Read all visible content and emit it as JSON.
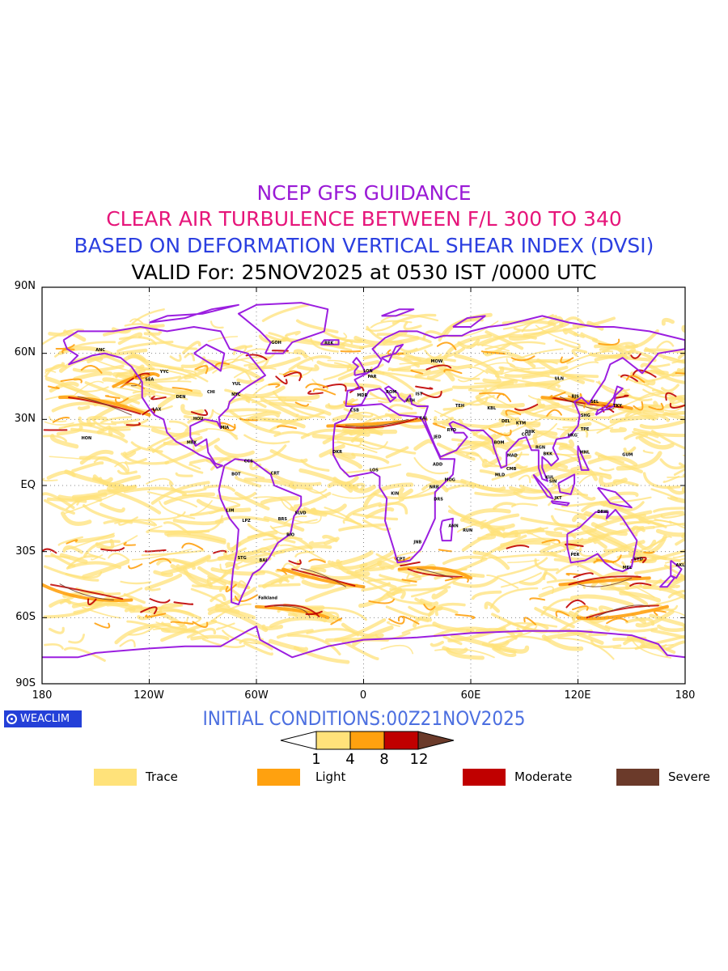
{
  "titles": {
    "line1": "NCEP GFS GUIDANCE",
    "line2": "CLEAR AIR TURBULENCE BETWEEN F/L 300 TO 340",
    "line3": "BASED ON DEFORMATION VERTICAL SHEAR INDEX (DVSI)",
    "line4": "VALID For: 25NOV2025 at 0530 IST /0000 UTC"
  },
  "colors": {
    "line1": "#9a1ad6",
    "line2": "#e6157a",
    "line3": "#2b3fe0",
    "line4": "#000000",
    "coast": "#9b1ee0",
    "trace": "#ffe27a",
    "light": "#ffa10f",
    "moderate": "#c00000",
    "severe": "#6b3a2a",
    "init": "#4c6fe0",
    "logo_bg": "#2440d8"
  },
  "axes": {
    "lat_labels": [
      "90N",
      "60N",
      "30N",
      "EQ",
      "30S",
      "60S",
      "90S"
    ],
    "lon_labels": [
      "180",
      "120W",
      "60W",
      "0",
      "60E",
      "120E",
      "180"
    ]
  },
  "logo": {
    "text": "WEACLIM"
  },
  "initial_conditions": "INITIAL CONDITIONS:00Z21NOV2025",
  "colorbar": {
    "ticks": [
      "1",
      "4",
      "8",
      "12"
    ],
    "legend": [
      {
        "label": "Trace"
      },
      {
        "label": "Light"
      },
      {
        "label": "Moderate"
      },
      {
        "label": "Severe"
      }
    ]
  },
  "station_labels": [
    {
      "code": "ANC",
      "lon": -150,
      "lat": 61
    },
    {
      "code": "HON",
      "lon": -158,
      "lat": 21
    },
    {
      "code": "MEX",
      "lon": -99,
      "lat": 19
    },
    {
      "code": "BOT",
      "lon": -74,
      "lat": 4.6
    },
    {
      "code": "LIM",
      "lon": -77,
      "lat": -12
    },
    {
      "code": "LPZ",
      "lon": -68,
      "lat": -16.5
    },
    {
      "code": "STG",
      "lon": -70.6,
      "lat": -33.4
    },
    {
      "code": "BRS",
      "lon": -47.9,
      "lat": -15.8
    },
    {
      "code": "SLVD",
      "lon": -38.5,
      "lat": -13
    },
    {
      "code": "RIO",
      "lon": -43.2,
      "lat": -22.9
    },
    {
      "code": "BAI",
      "lon": -58.4,
      "lat": -34.6
    },
    {
      "code": "Falkland",
      "lon": -59,
      "lat": -51.7
    },
    {
      "code": "CCS",
      "lon": -66.9,
      "lat": 10.5
    },
    {
      "code": "CRT",
      "lon": -52,
      "lat": 5
    },
    {
      "code": "DKR",
      "lon": -17.4,
      "lat": 14.7
    },
    {
      "code": "CSB",
      "lon": -7.6,
      "lat": 33.6
    },
    {
      "code": "MDR",
      "lon": -3.7,
      "lat": 40.4
    },
    {
      "code": "LON",
      "lon": -0.1,
      "lat": 51.5
    },
    {
      "code": "PAR",
      "lon": 2.3,
      "lat": 48.9
    },
    {
      "code": "ROM",
      "lon": 12.5,
      "lat": 41.9
    },
    {
      "code": "ATH",
      "lon": 23.7,
      "lat": 38
    },
    {
      "code": "CAI",
      "lon": 31.2,
      "lat": 30
    },
    {
      "code": "MOW",
      "lon": 37.6,
      "lat": 55.8
    },
    {
      "code": "IST",
      "lon": 29,
      "lat": 41
    },
    {
      "code": "TEH",
      "lon": 51.4,
      "lat": 35.7
    },
    {
      "code": "RYD",
      "lon": 46.7,
      "lat": 24.7
    },
    {
      "code": "JED",
      "lon": 39.2,
      "lat": 21.5
    },
    {
      "code": "ADD",
      "lon": 38.7,
      "lat": 9
    },
    {
      "code": "NRB",
      "lon": 36.8,
      "lat": -1.3
    },
    {
      "code": "MOG",
      "lon": 45.3,
      "lat": 2
    },
    {
      "code": "DRS",
      "lon": 39.3,
      "lat": -6.8
    },
    {
      "code": "KIN",
      "lon": 15.3,
      "lat": -4.3
    },
    {
      "code": "LOS",
      "lon": 3.4,
      "lat": 6.5
    },
    {
      "code": "JNB",
      "lon": 28,
      "lat": -26.2
    },
    {
      "code": "CPT",
      "lon": 18.4,
      "lat": -33.9
    },
    {
      "code": "ANN",
      "lon": 47.5,
      "lat": -18.9
    },
    {
      "code": "RUN",
      "lon": 55.5,
      "lat": -21
    },
    {
      "code": "KBL",
      "lon": 69.2,
      "lat": 34.5
    },
    {
      "code": "DEL",
      "lon": 77.2,
      "lat": 28.6
    },
    {
      "code": "BOM",
      "lon": 72.9,
      "lat": 19
    },
    {
      "code": "MAD",
      "lon": 80.3,
      "lat": 13
    },
    {
      "code": "CMB",
      "lon": 79.9,
      "lat": 6.9
    },
    {
      "code": "MLD",
      "lon": 73.5,
      "lat": 4.2
    },
    {
      "code": "KTM",
      "lon": 85.3,
      "lat": 27.7
    },
    {
      "code": "CCU",
      "lon": 88.4,
      "lat": 22.6
    },
    {
      "code": "DHK",
      "lon": 90.4,
      "lat": 23.8
    },
    {
      "code": "RGN",
      "lon": 96.2,
      "lat": 16.8
    },
    {
      "code": "BKK",
      "lon": 100.5,
      "lat": 13.8
    },
    {
      "code": "KUL",
      "lon": 101.7,
      "lat": 3.1
    },
    {
      "code": "SIN",
      "lon": 103.8,
      "lat": 1.3
    },
    {
      "code": "JKT",
      "lon": 106.8,
      "lat": -6.2
    },
    {
      "code": "HKG",
      "lon": 114.2,
      "lat": 22.3
    },
    {
      "code": "MNL",
      "lon": 121,
      "lat": 14.6
    },
    {
      "code": "TPE",
      "lon": 121.5,
      "lat": 25
    },
    {
      "code": "SHG",
      "lon": 121.5,
      "lat": 31.2
    },
    {
      "code": "BJS",
      "lon": 116.4,
      "lat": 39.9
    },
    {
      "code": "SEL",
      "lon": 127,
      "lat": 37.5
    },
    {
      "code": "TKY",
      "lon": 139.7,
      "lat": 35.7
    },
    {
      "code": "ULN",
      "lon": 106.9,
      "lat": 47.9
    },
    {
      "code": "GUM",
      "lon": 144.8,
      "lat": 13.5
    },
    {
      "code": "DRW",
      "lon": 130.8,
      "lat": -12.5
    },
    {
      "code": "PER",
      "lon": 115.9,
      "lat": -32
    },
    {
      "code": "SYD",
      "lon": 151.2,
      "lat": -33.9
    },
    {
      "code": "MEL",
      "lon": 145,
      "lat": -37.8
    },
    {
      "code": "AKL",
      "lon": 174.8,
      "lat": -36.8
    },
    {
      "code": "NYC",
      "lon": -74,
      "lat": 40.7
    },
    {
      "code": "CHI",
      "lon": -87.6,
      "lat": 41.9
    },
    {
      "code": "DEN",
      "lon": -105,
      "lat": 39.7
    },
    {
      "code": "LAX",
      "lon": -118.2,
      "lat": 34
    },
    {
      "code": "SEA",
      "lon": -122.3,
      "lat": 47.6
    },
    {
      "code": "MIA",
      "lon": -80.2,
      "lat": 25.8
    },
    {
      "code": "HOU",
      "lon": -95.4,
      "lat": 29.8
    },
    {
      "code": "YUL",
      "lon": -73.6,
      "lat": 45.5
    },
    {
      "code": "YYC",
      "lon": -114,
      "lat": 51
    },
    {
      "code": "GOH",
      "lon": -51.7,
      "lat": 64.2
    },
    {
      "code": "REK",
      "lon": -21.9,
      "lat": 64.1
    }
  ]
}
